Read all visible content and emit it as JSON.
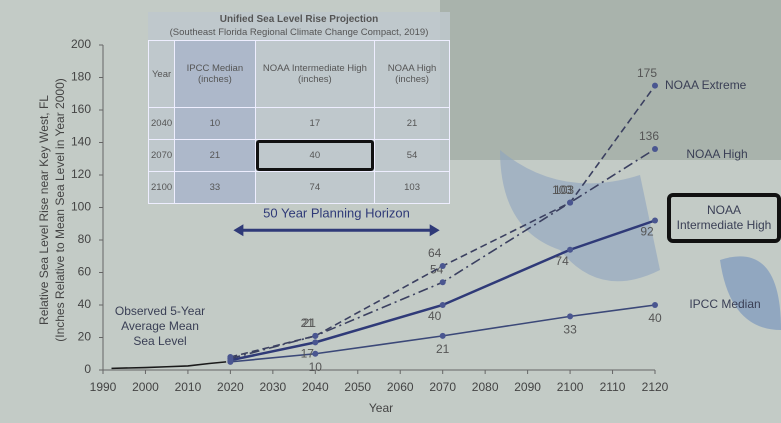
{
  "chart_data": {
    "type": "line",
    "x_label": "Year",
    "y_label": [
      "Relative Sea Level Rise near Key West, FL",
      "(Inches Relative to Mean Sea Level in Year 2000)"
    ],
    "xlim": [
      1990,
      2120
    ],
    "xticks": [
      1990,
      2000,
      2010,
      2020,
      2030,
      2040,
      2050,
      2060,
      2070,
      2080,
      2090,
      2100,
      2110,
      2120
    ],
    "ylim": [
      0,
      200
    ],
    "yticks": [
      0,
      20,
      40,
      60,
      80,
      100,
      120,
      140,
      160,
      180,
      200
    ],
    "grid": false,
    "annotation": "50 Year Planning Horizon",
    "annotation_span": [
      2020,
      2070
    ],
    "series": [
      {
        "name": "Observed 5-Year Average Mean Sea Level",
        "color": "#1a1a1a",
        "style": "solid",
        "markers": false,
        "x": [
          1992,
          2000,
          2005,
          2010,
          2015,
          2019
        ],
        "values": [
          1,
          1.5,
          2,
          2.5,
          4,
          5
        ]
      },
      {
        "name": "IPCC Median",
        "color": "#3b4878",
        "style": "solid",
        "markers": true,
        "x": [
          2020,
          2040,
          2070,
          2100,
          2120
        ],
        "values": [
          5,
          10,
          21,
          33,
          40
        ]
      },
      {
        "name": "NOAA Intermediate High",
        "color": "#2f3a78",
        "style": "solid",
        "markers": true,
        "boxed": true,
        "x": [
          2020,
          2040,
          2070,
          2100,
          2120
        ],
        "values": [
          6,
          17,
          40,
          74,
          92
        ]
      },
      {
        "name": "NOAA High",
        "color": "#3b4060",
        "style": "dashdot",
        "markers": true,
        "x": [
          2020,
          2040,
          2070,
          2100,
          2120
        ],
        "values": [
          7,
          21,
          54,
          103,
          136
        ]
      },
      {
        "name": "NOAA Extreme",
        "color": "#3b4060",
        "style": "dashed",
        "markers": true,
        "x": [
          2020,
          2040,
          2070,
          2100,
          2120
        ],
        "values": [
          8,
          21,
          64,
          103,
          175
        ]
      }
    ]
  },
  "table": {
    "title": "Unified Sea Level Rise Projection",
    "subtitle": "(Southeast Florida Regional Climate Change Compact, 2019)",
    "headers": [
      "Year",
      "IPCC Median (inches)",
      "NOAA Intermediate High (inches)",
      "NOAA High (inches)"
    ],
    "rows": [
      [
        "2040",
        "10",
        "17",
        "21"
      ],
      [
        "2070",
        "21",
        "40",
        "54"
      ],
      [
        "2100",
        "33",
        "74",
        "103"
      ]
    ]
  }
}
